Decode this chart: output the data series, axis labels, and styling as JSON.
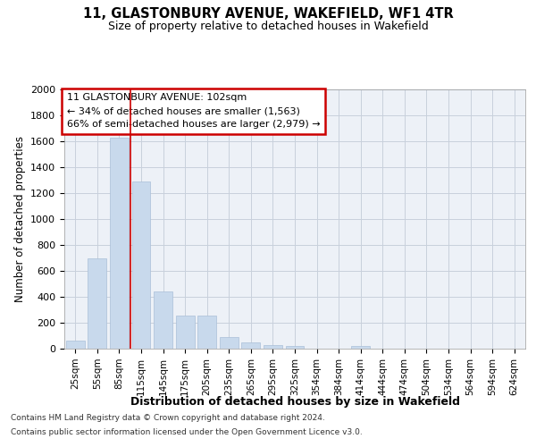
{
  "title": "11, GLASTONBURY AVENUE, WAKEFIELD, WF1 4TR",
  "subtitle": "Size of property relative to detached houses in Wakefield",
  "xlabel": "Distribution of detached houses by size in Wakefield",
  "ylabel": "Number of detached properties",
  "bar_color": "#c8d9ec",
  "bar_edge_color": "#aabfd8",
  "grid_color": "#c8d0dc",
  "background_color": "#edf1f7",
  "categories": [
    "25sqm",
    "55sqm",
    "85sqm",
    "115sqm",
    "145sqm",
    "175sqm",
    "205sqm",
    "235sqm",
    "265sqm",
    "295sqm",
    "325sqm",
    "354sqm",
    "384sqm",
    "414sqm",
    "444sqm",
    "474sqm",
    "504sqm",
    "534sqm",
    "564sqm",
    "594sqm",
    "624sqm"
  ],
  "values": [
    60,
    700,
    1630,
    1290,
    440,
    255,
    255,
    90,
    50,
    25,
    20,
    0,
    0,
    20,
    0,
    0,
    0,
    0,
    0,
    0,
    0
  ],
  "ylim": [
    0,
    2000
  ],
  "yticks": [
    0,
    200,
    400,
    600,
    800,
    1000,
    1200,
    1400,
    1600,
    1800,
    2000
  ],
  "red_line_x": 2.5,
  "annotation_title": "11 GLASTONBURY AVENUE: 102sqm",
  "annotation_line1": "← 34% of detached houses are smaller (1,563)",
  "annotation_line2": "66% of semi-detached houses are larger (2,979) →",
  "footer_line1": "Contains HM Land Registry data © Crown copyright and database right 2024.",
  "footer_line2": "Contains public sector information licensed under the Open Government Licence v3.0."
}
